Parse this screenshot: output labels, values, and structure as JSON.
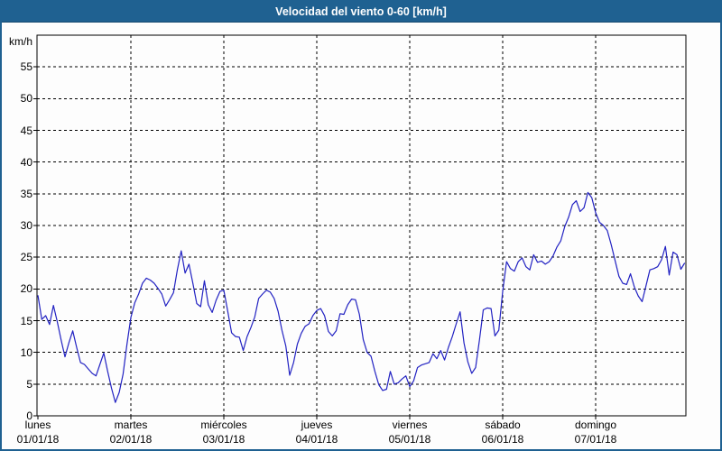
{
  "window": {
    "title": "Velocidad del viento 0-60 [km/h]"
  },
  "chart_data": {
    "type": "line",
    "title": "Velocidad del viento 0-60 [km/h]",
    "ylabel": "km/h",
    "ylim": [
      0,
      60
    ],
    "y_ticks": [
      0,
      5,
      10,
      15,
      20,
      25,
      30,
      35,
      40,
      45,
      50,
      55
    ],
    "grid": true,
    "grid_style": "dashed",
    "line_color": "#2222c2",
    "x_days": [
      {
        "name": "lunes",
        "date": "01/01/18"
      },
      {
        "name": "martes",
        "date": "02/01/18"
      },
      {
        "name": "miércoles",
        "date": "03/01/18"
      },
      {
        "name": "jueves",
        "date": "04/01/18"
      },
      {
        "name": "viernes",
        "date": "05/01/18"
      },
      {
        "name": "sábado",
        "date": "06/01/18"
      },
      {
        "name": "domingo",
        "date": "07/01/18"
      }
    ],
    "hours_per_point": 1,
    "series": [
      {
        "values": [
          19.0,
          15.2,
          15.8,
          14.4,
          17.4,
          14.8,
          11.9,
          9.3,
          11.5,
          13.4,
          10.8,
          8.4,
          8.1,
          7.4,
          6.7,
          6.3,
          8.1,
          9.9,
          7.0,
          4.4,
          2.1,
          3.7,
          6.6,
          11.3,
          15.5,
          17.8,
          19.2,
          20.9,
          21.7,
          21.4,
          20.9,
          20.1,
          19.2,
          17.3,
          18.3,
          19.4,
          23.0,
          26.0,
          22.5,
          23.9,
          20.9,
          17.7,
          17.2,
          21.3,
          17.5,
          16.3,
          18.2,
          19.6,
          19.8,
          16.5,
          13.1,
          12.5,
          12.4,
          10.3,
          12.5,
          13.9,
          15.6,
          18.5,
          19.2,
          19.8,
          19.5,
          18.5,
          16.5,
          13.5,
          11.0,
          6.4,
          8.4,
          11.3,
          13.0,
          14.1,
          14.5,
          15.8,
          16.6,
          16.9,
          15.8,
          13.3,
          12.6,
          13.4,
          16.1,
          16.0,
          17.5,
          18.4,
          18.3,
          16.0,
          12.0,
          10.0,
          9.4,
          7.0,
          4.9,
          4.0,
          4.2,
          7.0,
          5.0,
          5.2,
          5.8,
          6.3,
          4.6,
          5.5,
          7.6,
          8.0,
          8.2,
          8.4,
          9.8,
          9.0,
          10.3,
          8.8,
          10.8,
          12.5,
          14.5,
          16.4,
          11.5,
          8.5,
          6.7,
          7.6,
          12.0,
          16.7,
          17.0,
          16.9,
          12.6,
          13.5,
          19.6,
          24.3,
          23.2,
          22.8,
          24.3,
          24.9,
          23.5,
          23.0,
          25.4,
          24.2,
          24.4,
          23.9,
          24.3,
          25.2,
          26.6,
          27.6,
          29.8,
          31.3,
          33.3,
          33.9,
          32.2,
          32.8,
          35.2,
          34.4,
          32.0,
          30.5,
          30.0,
          29.2,
          27.0,
          24.5,
          22.0,
          20.9,
          20.7,
          22.4,
          20.3,
          18.9,
          18.0,
          20.5,
          23.0,
          23.2,
          23.5,
          24.6,
          26.7,
          22.2,
          25.8,
          25.4,
          23.1,
          24.1
        ]
      }
    ]
  },
  "colors": {
    "titlebar": "#1f6191",
    "frame_border": "#1f6191",
    "plot_background": "#ffffff",
    "axis": "#000000",
    "line": "#2222c2"
  }
}
